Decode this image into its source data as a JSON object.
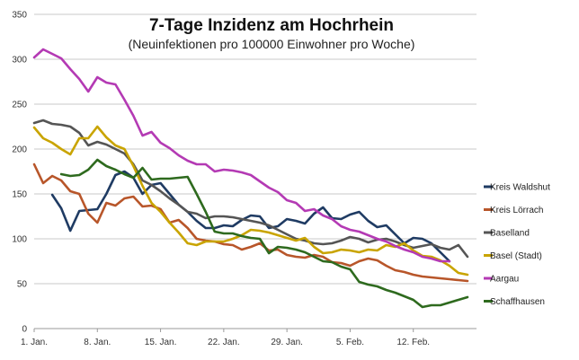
{
  "chart_data": {
    "type": "line",
    "title": "7-Tage Inzidenz am Hochrhein",
    "subtitle": "(Neuinfektionen pro 100000 Einwohner pro Woche)",
    "xlabel": "",
    "ylabel": "",
    "ylim": [
      0,
      350
    ],
    "yticks": [
      0,
      50,
      100,
      150,
      200,
      250,
      300,
      350
    ],
    "x_start": "1. Jan.",
    "xlim": [
      0,
      49
    ],
    "x_tick_labels": [
      {
        "x": 0,
        "label": "1. Jan."
      },
      {
        "x": 7,
        "label": "8. Jan."
      },
      {
        "x": 14,
        "label": "15. Jan."
      },
      {
        "x": 21,
        "label": "22. Jan."
      },
      {
        "x": 28,
        "label": "29. Jan."
      },
      {
        "x": 35,
        "label": "5. Feb."
      },
      {
        "x": 42,
        "label": "12. Feb."
      }
    ],
    "grid": true,
    "legend_position": "right",
    "series": [
      {
        "name": "Kreis Waldshut",
        "color": "#1f3b63",
        "x": [
          2,
          3,
          4,
          5,
          6,
          7,
          8,
          9,
          10,
          11,
          12,
          13,
          14,
          15,
          16,
          17,
          18,
          19,
          20,
          21,
          22,
          23,
          24,
          25,
          26,
          27,
          28,
          29,
          30,
          31,
          32,
          33,
          34,
          35,
          36,
          37,
          38,
          39,
          40,
          41,
          42,
          43,
          44,
          45,
          46
        ],
        "values": [
          149,
          134,
          109,
          131,
          132,
          133,
          150,
          171,
          175,
          168,
          150,
          160,
          162,
          150,
          138,
          130,
          120,
          112,
          112,
          115,
          114,
          121,
          126,
          125,
          112,
          114,
          122,
          120,
          117,
          128,
          135,
          123,
          122,
          127,
          130,
          120,
          113,
          115,
          105,
          95,
          101,
          100,
          95,
          85,
          75
        ]
      },
      {
        "name": "Kreis Lörrach",
        "color": "#b8562a",
        "x": [
          0,
          1,
          2,
          3,
          4,
          5,
          6,
          7,
          8,
          9,
          10,
          11,
          12,
          13,
          14,
          15,
          16,
          17,
          18,
          19,
          20,
          21,
          22,
          23,
          24,
          25,
          26,
          27,
          28,
          29,
          30,
          31,
          32,
          33,
          34,
          35,
          36,
          37,
          38,
          39,
          40,
          41,
          42,
          43,
          44,
          45,
          46,
          47,
          48
        ],
        "values": [
          183,
          162,
          170,
          165,
          153,
          150,
          128,
          118,
          140,
          137,
          145,
          147,
          136,
          137,
          133,
          118,
          121,
          112,
          100,
          98,
          97,
          94,
          93,
          88,
          91,
          95,
          87,
          88,
          82,
          80,
          79,
          82,
          80,
          74,
          73,
          70,
          75,
          78,
          76,
          70,
          65,
          63,
          60,
          58,
          57,
          56,
          55,
          54,
          53
        ]
      },
      {
        "name": "Baselland",
        "color": "#555555",
        "x": [
          0,
          1,
          2,
          3,
          4,
          5,
          6,
          7,
          8,
          9,
          10,
          11,
          12,
          13,
          14,
          15,
          16,
          17,
          18,
          19,
          20,
          21,
          22,
          23,
          24,
          25,
          26,
          27,
          28,
          29,
          30,
          31,
          32,
          33,
          34,
          35,
          36,
          37,
          38,
          39,
          40,
          41,
          42,
          43,
          44,
          45,
          46,
          47,
          48
        ],
        "values": [
          229,
          232,
          228,
          227,
          225,
          218,
          204,
          208,
          205,
          200,
          195,
          183,
          165,
          160,
          153,
          145,
          138,
          130,
          128,
          123,
          125,
          125,
          124,
          122,
          120,
          118,
          115,
          110,
          105,
          100,
          98,
          95,
          94,
          95,
          98,
          102,
          100,
          96,
          99,
          100,
          97,
          93,
          90,
          92,
          94,
          90,
          88,
          93,
          80
        ]
      },
      {
        "name": "Basel (Stadt)",
        "color": "#c9a400",
        "x": [
          0,
          1,
          2,
          3,
          4,
          5,
          6,
          7,
          8,
          9,
          10,
          11,
          12,
          13,
          14,
          15,
          16,
          17,
          18,
          19,
          20,
          21,
          22,
          23,
          24,
          25,
          26,
          27,
          28,
          29,
          30,
          31,
          32,
          33,
          34,
          35,
          36,
          37,
          38,
          39,
          40,
          41,
          42,
          43,
          44,
          45,
          46,
          47,
          48
        ],
        "values": [
          224,
          212,
          207,
          200,
          194,
          212,
          212,
          225,
          213,
          204,
          200,
          181,
          159,
          140,
          130,
          118,
          107,
          95,
          93,
          97,
          97,
          97,
          100,
          104,
          110,
          109,
          107,
          104,
          101,
          98,
          101,
          91,
          84,
          85,
          88,
          87,
          85,
          88,
          87,
          93,
          91,
          95,
          87,
          81,
          80,
          76,
          70,
          62,
          60
        ]
      },
      {
        "name": "Aargau",
        "color": "#b43ab4",
        "x": [
          0,
          1,
          2,
          3,
          4,
          5,
          6,
          7,
          8,
          9,
          10,
          11,
          12,
          13,
          14,
          15,
          16,
          17,
          18,
          19,
          20,
          21,
          22,
          23,
          24,
          25,
          26,
          27,
          28,
          29,
          30,
          31,
          32,
          33,
          34,
          35,
          36,
          37,
          38,
          39,
          40,
          41,
          42,
          43,
          44,
          45,
          46
        ],
        "values": [
          302,
          311,
          306,
          301,
          289,
          278,
          264,
          280,
          274,
          272,
          255,
          237,
          215,
          219,
          207,
          201,
          193,
          187,
          183,
          183,
          175,
          177,
          176,
          174,
          171,
          164,
          157,
          152,
          143,
          140,
          131,
          133,
          126,
          122,
          114,
          110,
          108,
          104,
          100,
          97,
          92,
          88,
          85,
          80,
          78,
          75,
          75
        ]
      },
      {
        "name": "Schaffhausen",
        "color": "#2e6a1e",
        "x": [
          3,
          4,
          5,
          6,
          7,
          8,
          9,
          10,
          11,
          12,
          13,
          14,
          15,
          16,
          17,
          18,
          19,
          20,
          21,
          22,
          23,
          24,
          25,
          26,
          27,
          28,
          29,
          30,
          31,
          32,
          33,
          34,
          35,
          36,
          37,
          38,
          39,
          40,
          41,
          42,
          43,
          44,
          45,
          46,
          47,
          48
        ],
        "values": [
          172,
          170,
          171,
          177,
          188,
          181,
          177,
          172,
          168,
          179,
          166,
          167,
          167,
          168,
          169,
          150,
          130,
          108,
          106,
          106,
          103,
          101,
          100,
          84,
          91,
          90,
          88,
          85,
          80,
          75,
          74,
          69,
          66,
          52,
          49,
          47,
          43,
          40,
          36,
          32,
          24,
          26,
          26,
          29,
          32,
          35
        ]
      }
    ]
  }
}
